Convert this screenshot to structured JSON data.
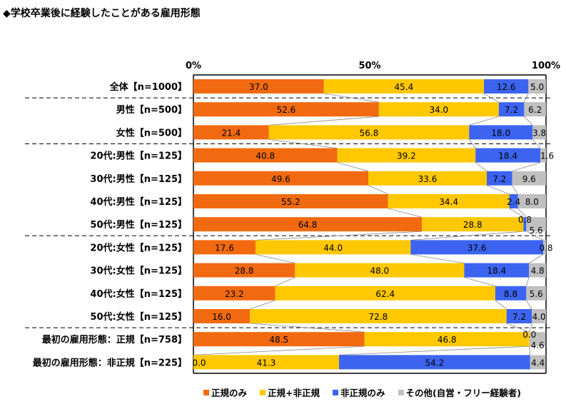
{
  "chart_data": {
    "type": "bar",
    "orientation": "horizontal",
    "stacked": true,
    "percent": true,
    "title": "◆学校卒業後に経験したことがある雇用形態",
    "xlim": [
      0,
      100
    ],
    "xticks": [
      "0%",
      "50%",
      "100%"
    ],
    "legend_position": "bottom",
    "categories": [
      "全体【n=1000】",
      "男性【n=500】",
      "女性【n=500】",
      "20代:男性【n=125】",
      "30代:男性【n=125】",
      "40代:男性【n=125】",
      "50代:男性【n=125】",
      "20代:女性【n=125】",
      "30代:女性【n=125】",
      "40代:女性【n=125】",
      "50代:女性【n=125】",
      "最初の雇用形態：正規【n=758】",
      "最初の雇用形態：非正規【n=225】"
    ],
    "series": [
      {
        "name": "正規のみ",
        "color": "#F26A10",
        "values": [
          37.0,
          52.6,
          21.4,
          40.8,
          49.6,
          55.2,
          64.8,
          17.6,
          28.8,
          23.2,
          16.0,
          48.5,
          0.0
        ]
      },
      {
        "name": "正規+非正規",
        "color": "#FFC800",
        "values": [
          45.4,
          34.0,
          56.8,
          39.2,
          33.6,
          34.4,
          28.8,
          44.0,
          48.0,
          62.4,
          72.8,
          46.8,
          41.3
        ]
      },
      {
        "name": "非正規のみ",
        "color": "#3C64F0",
        "values": [
          12.6,
          7.2,
          18.0,
          18.4,
          7.2,
          2.4,
          0.8,
          37.6,
          18.4,
          8.8,
          7.2,
          0.0,
          54.2
        ]
      },
      {
        "name": "その他(自営・フリー経験者)",
        "color": "#C0C0C0",
        "values": [
          5.0,
          6.2,
          3.8,
          1.6,
          9.6,
          8.0,
          5.6,
          0.8,
          4.8,
          5.6,
          4.0,
          4.6,
          4.4
        ]
      }
    ],
    "group_separators_after": [
      0,
      2,
      6,
      10
    ],
    "grid": false
  }
}
